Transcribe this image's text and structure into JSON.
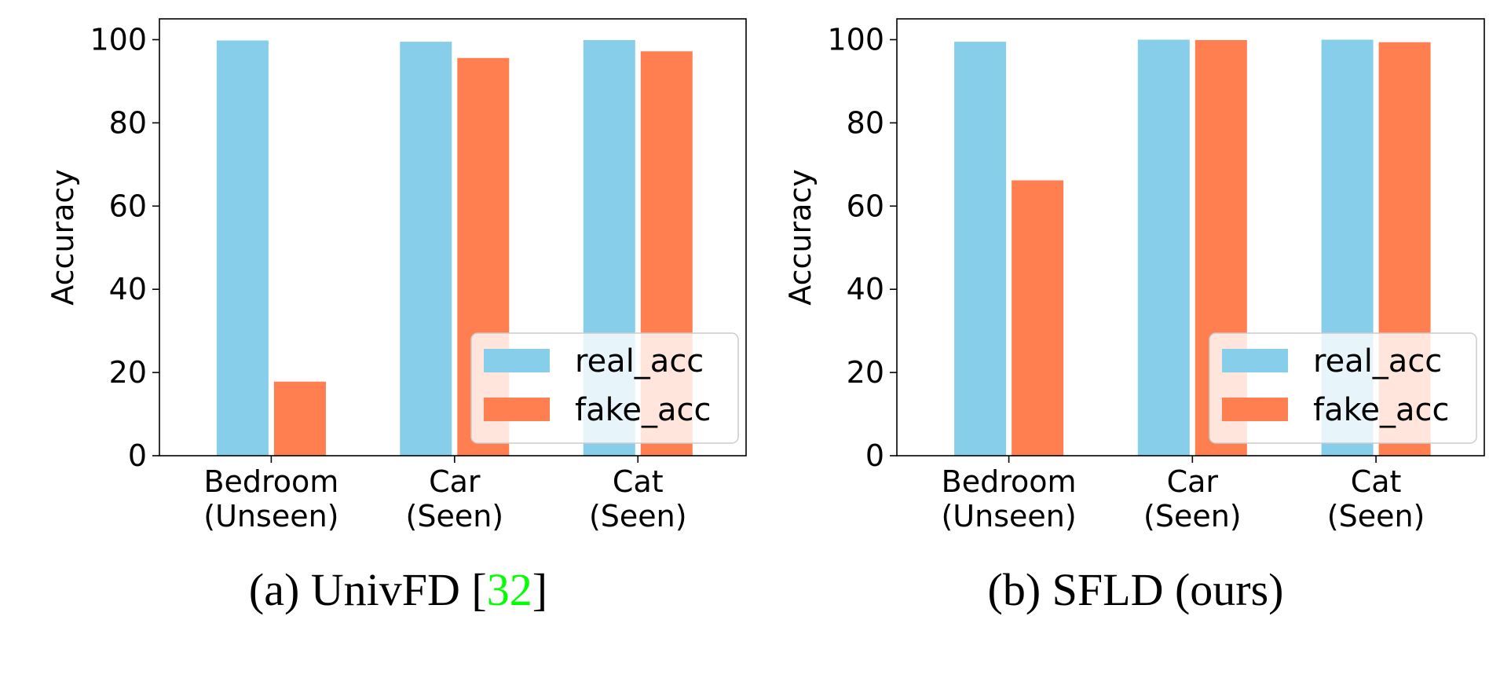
{
  "chart_data": [
    {
      "type": "bar",
      "categories": [
        [
          "Bedroom",
          "(Unseen)"
        ],
        [
          "Car",
          "(Seen)"
        ],
        [
          "Cat",
          "(Seen)"
        ]
      ],
      "series": [
        {
          "name": "real_acc",
          "color": "#87CEEB",
          "values": [
            99.8,
            99.5,
            99.9
          ]
        },
        {
          "name": "fake_acc",
          "color": "#FF7F50",
          "values": [
            17.8,
            95.6,
            97.2
          ]
        }
      ],
      "ylabel": "Accuracy",
      "yticks": [
        0,
        20,
        40,
        60,
        80,
        100
      ],
      "ylim": [
        0,
        105
      ],
      "legend": "lower-right",
      "caption": {
        "prefix": "(a) UnivFD [",
        "ref": "32",
        "suffix": "]",
        "ref_color": "#00ff00"
      }
    },
    {
      "type": "bar",
      "categories": [
        [
          "Bedroom",
          "(Unseen)"
        ],
        [
          "Car",
          "(Seen)"
        ],
        [
          "Cat",
          "(Seen)"
        ]
      ],
      "series": [
        {
          "name": "real_acc",
          "color": "#87CEEB",
          "values": [
            99.5,
            100.0,
            100.0
          ]
        },
        {
          "name": "fake_acc",
          "color": "#FF7F50",
          "values": [
            66.2,
            99.9,
            99.4
          ]
        }
      ],
      "ylabel": "Accuracy",
      "yticks": [
        0,
        20,
        40,
        60,
        80,
        100
      ],
      "ylim": [
        0,
        105
      ],
      "legend": "lower-right",
      "caption": {
        "prefix": "(b) SFLD (ours)",
        "ref": "",
        "suffix": "",
        "ref_color": "#00ff00"
      }
    }
  ]
}
